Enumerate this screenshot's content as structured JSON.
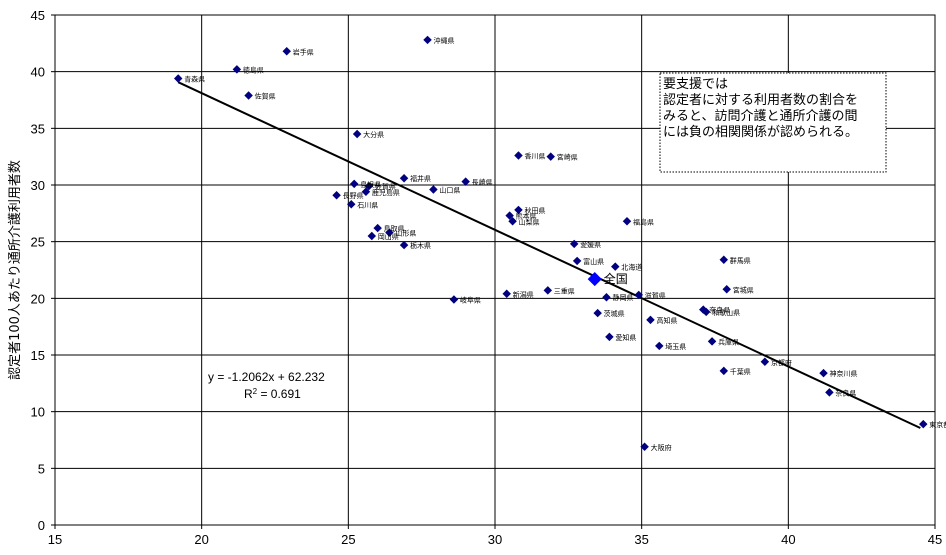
{
  "chart_data": {
    "type": "scatter",
    "title": "",
    "xlabel": "",
    "ylabel": "認定者100人あたり通所介護利用者数",
    "xlim": [
      15,
      45
    ],
    "ylim": [
      0,
      45
    ],
    "xticks": [
      15,
      20,
      25,
      30,
      35,
      40,
      45
    ],
    "yticks": [
      0,
      5,
      10,
      15,
      20,
      25,
      30,
      35,
      40,
      45
    ],
    "grid": true,
    "point_color": "#000080",
    "national_color": "#0000ff",
    "line_color": "#000000",
    "trendline": {
      "slope": -1.2062,
      "intercept": 62.232,
      "x_range": [
        19.2,
        44.5
      ],
      "equation": "y = -1.2062x + 62.232",
      "r2_prefix": "R",
      "r2_exp": "2",
      "r2_value": " = 0.691"
    },
    "note": {
      "lines": [
        "要支援では",
        "認定者に対する利用者数の割合を",
        "みると、訪問介護と通所介護の間",
        "には負の相関関係が認められる。"
      ]
    },
    "points": [
      {
        "name": "沖縄県",
        "x": 27.7,
        "y": 42.8
      },
      {
        "name": "岩手県",
        "x": 22.9,
        "y": 41.8
      },
      {
        "name": "徳島県",
        "x": 21.2,
        "y": 40.2
      },
      {
        "name": "青森県",
        "x": 19.2,
        "y": 39.4
      },
      {
        "name": "佐賀県",
        "x": 21.6,
        "y": 37.9
      },
      {
        "name": "大分県",
        "x": 25.3,
        "y": 34.5
      },
      {
        "name": "香川県",
        "x": 30.8,
        "y": 32.6
      },
      {
        "name": "宮崎県",
        "x": 31.9,
        "y": 32.5
      },
      {
        "name": "福井県",
        "x": 26.9,
        "y": 30.6
      },
      {
        "name": "島根県",
        "x": 25.2,
        "y": 30.1
      },
      {
        "name": "長崎県",
        "x": 29.0,
        "y": 30.3
      },
      {
        "name": "佐賀県",
        "x": 25.7,
        "y": 29.9
      },
      {
        "name": "山口県",
        "x": 27.9,
        "y": 29.6
      },
      {
        "name": "長野県",
        "x": 24.6,
        "y": 29.1
      },
      {
        "name": "鹿児島県",
        "x": 25.6,
        "y": 29.4
      },
      {
        "name": "石川県",
        "x": 25.1,
        "y": 28.3
      },
      {
        "name": "秋田県",
        "x": 30.8,
        "y": 27.8
      },
      {
        "name": "熊本県",
        "x": 30.5,
        "y": 27.3
      },
      {
        "name": "山梨県",
        "x": 30.6,
        "y": 26.8
      },
      {
        "name": "福島県",
        "x": 34.5,
        "y": 26.8
      },
      {
        "name": "鳥取県",
        "x": 26.0,
        "y": 26.2
      },
      {
        "name": "山形県",
        "x": 26.4,
        "y": 25.8
      },
      {
        "name": "岡山県",
        "x": 25.8,
        "y": 25.5
      },
      {
        "name": "栃木県",
        "x": 26.9,
        "y": 24.7
      },
      {
        "name": "愛媛県",
        "x": 32.7,
        "y": 24.8
      },
      {
        "name": "群馬県",
        "x": 37.8,
        "y": 23.4
      },
      {
        "name": "富山県",
        "x": 32.8,
        "y": 23.3
      },
      {
        "name": "北海道",
        "x": 34.1,
        "y": 22.8
      },
      {
        "name": "宮城県",
        "x": 37.9,
        "y": 20.8
      },
      {
        "name": "三重県",
        "x": 31.8,
        "y": 20.7
      },
      {
        "name": "新潟県",
        "x": 30.4,
        "y": 20.4
      },
      {
        "name": "滋賀県",
        "x": 34.9,
        "y": 20.3
      },
      {
        "name": "岐阜県",
        "x": 28.6,
        "y": 19.9
      },
      {
        "name": "静岡県",
        "x": 33.8,
        "y": 20.1
      },
      {
        "name": "奈良県",
        "x": 37.1,
        "y": 19.0
      },
      {
        "name": "和歌山県",
        "x": 37.2,
        "y": 18.8
      },
      {
        "name": "茨城県",
        "x": 33.5,
        "y": 18.7
      },
      {
        "name": "高知県",
        "x": 35.3,
        "y": 18.1
      },
      {
        "name": "愛知県",
        "x": 33.9,
        "y": 16.6
      },
      {
        "name": "兵庫県",
        "x": 37.4,
        "y": 16.2
      },
      {
        "name": "埼玉県",
        "x": 35.6,
        "y": 15.8
      },
      {
        "name": "京都府",
        "x": 39.2,
        "y": 14.4
      },
      {
        "name": "千葉県",
        "x": 37.8,
        "y": 13.6
      },
      {
        "name": "神奈川県",
        "x": 41.2,
        "y": 13.4
      },
      {
        "name": "奈良県",
        "x": 41.4,
        "y": 11.7
      },
      {
        "name": "東京都",
        "x": 44.6,
        "y": 8.9
      },
      {
        "name": "大阪府",
        "x": 35.1,
        "y": 6.9
      }
    ],
    "national": {
      "name": "全国",
      "x": 33.4,
      "y": 21.7
    }
  }
}
